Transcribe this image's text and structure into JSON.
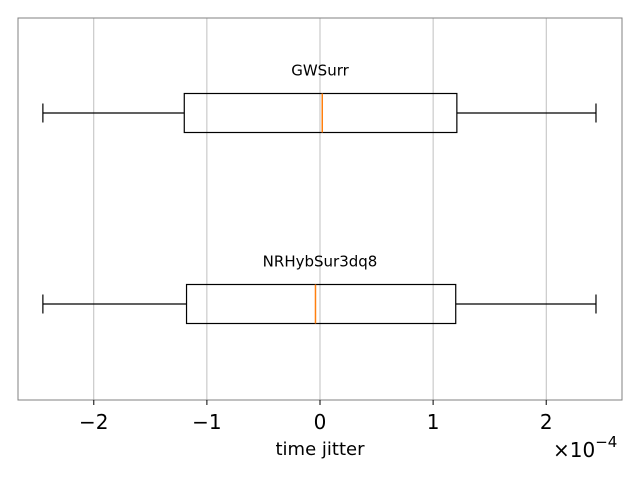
{
  "chart_data": {
    "type": "boxplot",
    "orientation": "horizontal",
    "xlabel": "time jitter",
    "x_offset_text": "×10",
    "x_offset_exponent": "−4",
    "xlim": [
      -2.67,
      2.67
    ],
    "xticks": [
      -2,
      -1,
      0,
      1,
      2
    ],
    "xtick_labels": [
      "−2",
      "−1",
      "0",
      "1",
      "2"
    ],
    "grid": "vertical",
    "series": [
      {
        "name": "GWSurr",
        "whisker_low": -2.45,
        "q1": -1.2,
        "median": 0.02,
        "q3": 1.21,
        "whisker_high": 2.44
      },
      {
        "name": "NRHybSur3dq8",
        "whisker_low": -2.45,
        "q1": -1.18,
        "median": -0.04,
        "q3": 1.2,
        "whisker_high": 2.44
      }
    ],
    "colors": {
      "box": "#000000",
      "median": "#ff7f0e",
      "grid": "#b0b0b0",
      "frame": "#808080"
    }
  }
}
